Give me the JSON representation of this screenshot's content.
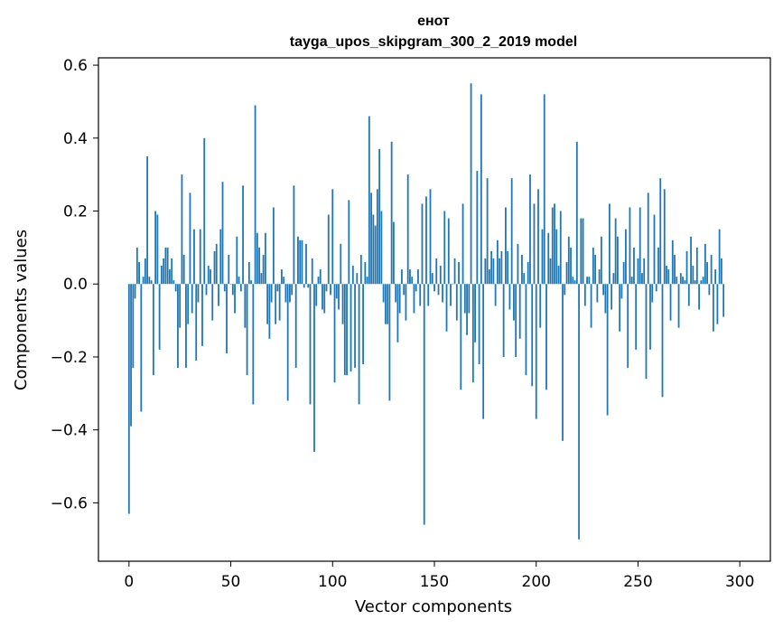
{
  "chart_data": {
    "type": "bar",
    "title": "енот",
    "subtitle": "tayga_upos_skipgram_300_2_2019 model",
    "xlabel": "Vector components",
    "ylabel": "Components values",
    "xlim": [
      -15,
      315
    ],
    "ylim": [
      -0.76,
      0.62
    ],
    "xticks": [
      0,
      50,
      100,
      150,
      200,
      250,
      300
    ],
    "yticks": [
      -0.6,
      -0.4,
      -0.2,
      0.0,
      0.2,
      0.4,
      0.6
    ],
    "xtick_labels": [
      "0",
      "50",
      "100",
      "150",
      "200",
      "250",
      "300"
    ],
    "ytick_labels": [
      "−0.6",
      "−0.4",
      "−0.2",
      "0.0",
      "0.2",
      "0.4",
      "0.6"
    ],
    "grid": false,
    "bar_color": "#1f77b4",
    "x_start": 0,
    "values": [
      -0.63,
      -0.39,
      -0.23,
      -0.04,
      0.1,
      0.06,
      -0.35,
      0.02,
      0.07,
      0.35,
      0.02,
      0.01,
      -0.25,
      0.2,
      0.19,
      -0.18,
      0.05,
      0.07,
      0.1,
      0.1,
      0.04,
      0.07,
      0.01,
      -0.02,
      -0.23,
      -0.12,
      0.3,
      0.08,
      -0.23,
      -0.11,
      0.25,
      -0.08,
      0.15,
      -0.21,
      -0.05,
      0.15,
      -0.17,
      0.4,
      -0.03,
      0.05,
      0.04,
      -0.1,
      0.09,
      0.11,
      -0.06,
      0.15,
      0.28,
      -0.02,
      -0.19,
      0.08,
      0.0,
      -0.03,
      -0.08,
      0.13,
      0.02,
      -0.02,
      0.27,
      -0.12,
      -0.25,
      0.06,
      0.01,
      -0.33,
      0.49,
      0.14,
      0.1,
      0.03,
      0.08,
      0.14,
      -0.11,
      -0.15,
      -0.05,
      0.21,
      -0.11,
      -0.02,
      -0.1,
      0.04,
      0.02,
      -0.05,
      -0.32,
      -0.05,
      -0.03,
      0.27,
      -0.23,
      0.13,
      0.12,
      0.12,
      -0.01,
      0.11,
      -0.01,
      -0.33,
      0.07,
      -0.46,
      -0.06,
      0.02,
      0.04,
      -0.07,
      -0.08,
      -0.02,
      0.19,
      -0.03,
      0.26,
      -0.27,
      -0.04,
      -0.07,
      0.11,
      -0.11,
      -0.25,
      -0.25,
      0.23,
      -0.24,
      0.05,
      -0.23,
      0.03,
      -0.33,
      0.08,
      -0.22,
      0.06,
      0.02,
      0.46,
      0.25,
      0.19,
      0.16,
      0.26,
      0.37,
      0.2,
      -0.05,
      -0.11,
      -0.11,
      -0.32,
      0.39,
      0.17,
      -0.05,
      -0.16,
      -0.08,
      0.04,
      -0.03,
      -0.1,
      0.3,
      0.04,
      0.02,
      -0.08,
      -0.02,
      0.04,
      -0.06,
      0.22,
      -0.66,
      0.24,
      -0.06,
      0.26,
      0.03,
      -0.02,
      0.07,
      -0.03,
      0.05,
      -0.05,
      0.2,
      -0.13,
      0.18,
      -0.06,
      0.0,
      0.07,
      -0.1,
      0.06,
      -0.29,
      0.22,
      -0.08,
      -0.14,
      -0.08,
      0.55,
      -0.27,
      -0.16,
      0.31,
      -0.22,
      0.52,
      -0.37,
      0.07,
      0.29,
      0.04,
      0.09,
      0.07,
      -0.06,
      0.12,
      0.07,
      0.09,
      -0.2,
      0.21,
      0.09,
      -0.07,
      0.29,
      -0.1,
      -0.2,
      0.11,
      -0.15,
      0.08,
      0.03,
      -0.25,
      0.06,
      0.3,
      -0.28,
      0.22,
      -0.37,
      0.26,
      -0.12,
      0.15,
      0.52,
      -0.29,
      0.14,
      0.07,
      0.21,
      0.22,
      0.15,
      0.05,
      0.2,
      -0.43,
      -0.03,
      0.06,
      0.13,
      0.1,
      0.02,
      0.01,
      0.39,
      -0.7,
      0.18,
      0.18,
      -0.06,
      0.02,
      0.02,
      -0.12,
      0.1,
      0.08,
      -0.05,
      0.04,
      0.13,
      -0.03,
      -0.08,
      -0.36,
      0.22,
      -0.07,
      0.03,
      0.18,
      0.13,
      -0.13,
      -0.04,
      0.06,
      0.15,
      -0.23,
      0.21,
      0.02,
      0.1,
      -0.18,
      0.07,
      0.21,
      0.03,
      0.07,
      -0.26,
      0.25,
      -0.18,
      -0.05,
      0.19,
      -0.02,
      0.1,
      0.29,
      -0.31,
      0.26,
      0.05,
      0.04,
      -0.1,
      0.12,
      0.08,
      0.02,
      -0.12,
      0.03,
      0.02,
      0.01,
      0.09,
      -0.06,
      0.13,
      0.05,
      0.01,
      0.1,
      -0.07,
      0.01,
      0.02,
      0.11,
      0.06,
      -0.03,
      0.08,
      -0.13,
      0.04,
      -0.11,
      0.15,
      0.07,
      -0.09
    ]
  }
}
